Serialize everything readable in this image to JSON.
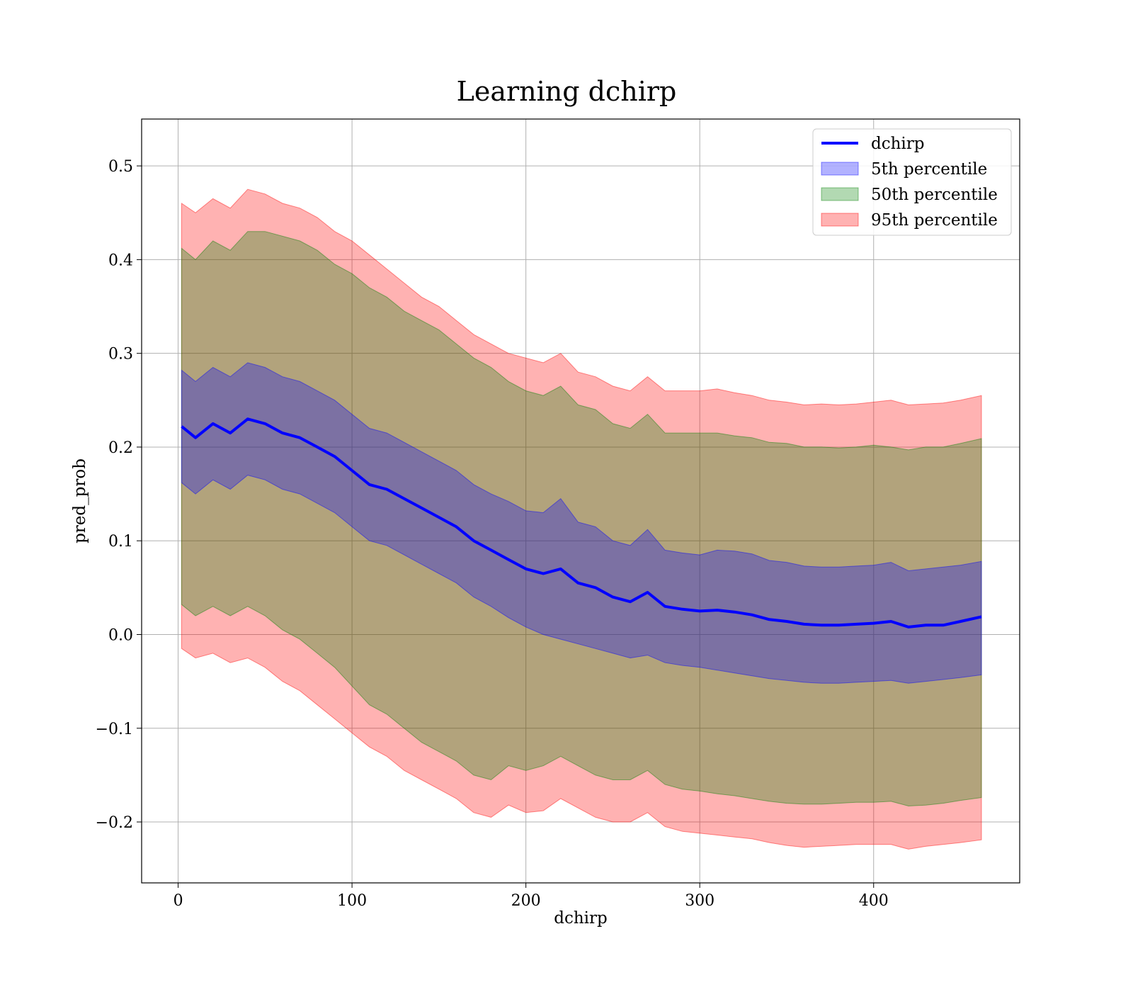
{
  "chart_data": {
    "type": "area",
    "title": "Learning dchirp",
    "xlabel": "dchirp",
    "ylabel": "pred_prob",
    "xlim": [
      -21,
      484
    ],
    "ylim": [
      -0.265,
      0.55
    ],
    "xticks": [
      0,
      100,
      200,
      300,
      400
    ],
    "yticks": [
      -0.2,
      -0.1,
      0.0,
      0.1,
      0.2,
      0.3,
      0.4,
      0.5
    ],
    "grid": true,
    "legend_position": "top-right",
    "colors": {
      "line": "#0000ff",
      "band_5th": "#0000ff",
      "band_50th": "#008000",
      "band_95th": "#ff0000"
    },
    "x": [
      2,
      10,
      20,
      30,
      40,
      50,
      60,
      70,
      80,
      90,
      100,
      110,
      120,
      130,
      140,
      150,
      160,
      170,
      180,
      190,
      200,
      210,
      220,
      230,
      240,
      250,
      260,
      270,
      280,
      290,
      300,
      310,
      320,
      330,
      340,
      350,
      360,
      370,
      380,
      390,
      400,
      410,
      420,
      430,
      440,
      450,
      462
    ],
    "series": [
      {
        "name": "dchirp",
        "kind": "line",
        "values": [
          0.222,
          0.21,
          0.225,
          0.215,
          0.23,
          0.225,
          0.215,
          0.21,
          0.2,
          0.19,
          0.175,
          0.16,
          0.155,
          0.145,
          0.135,
          0.125,
          0.115,
          0.1,
          0.09,
          0.08,
          0.07,
          0.065,
          0.07,
          0.055,
          0.05,
          0.04,
          0.035,
          0.045,
          0.03,
          0.027,
          0.025,
          0.026,
          0.024,
          0.021,
          0.016,
          0.014,
          0.011,
          0.01,
          0.01,
          0.011,
          0.012,
          0.014,
          0.008,
          0.01,
          0.01,
          0.014,
          0.019
        ]
      },
      {
        "name": "5th percentile",
        "kind": "band",
        "lower": [
          0.162,
          0.15,
          0.165,
          0.155,
          0.17,
          0.165,
          0.155,
          0.15,
          0.14,
          0.13,
          0.115,
          0.1,
          0.095,
          0.085,
          0.075,
          0.065,
          0.055,
          0.04,
          0.03,
          0.018,
          0.008,
          0.0,
          -0.005,
          -0.01,
          -0.015,
          -0.02,
          -0.025,
          -0.022,
          -0.03,
          -0.033,
          -0.035,
          -0.038,
          -0.041,
          -0.044,
          -0.047,
          -0.049,
          -0.051,
          -0.052,
          -0.052,
          -0.051,
          -0.05,
          -0.049,
          -0.052,
          -0.05,
          -0.048,
          -0.046,
          -0.043
        ],
        "upper": [
          0.282,
          0.27,
          0.285,
          0.275,
          0.29,
          0.285,
          0.275,
          0.27,
          0.26,
          0.25,
          0.235,
          0.22,
          0.215,
          0.205,
          0.195,
          0.185,
          0.175,
          0.16,
          0.15,
          0.142,
          0.132,
          0.13,
          0.145,
          0.12,
          0.115,
          0.1,
          0.095,
          0.112,
          0.09,
          0.087,
          0.085,
          0.09,
          0.089,
          0.086,
          0.079,
          0.077,
          0.073,
          0.072,
          0.072,
          0.073,
          0.074,
          0.077,
          0.068,
          0.07,
          0.072,
          0.074,
          0.078
        ]
      },
      {
        "name": "50th percentile",
        "kind": "band",
        "lower": [
          0.032,
          0.02,
          0.03,
          0.02,
          0.03,
          0.02,
          0.005,
          -0.005,
          -0.02,
          -0.035,
          -0.055,
          -0.075,
          -0.085,
          -0.1,
          -0.115,
          -0.125,
          -0.135,
          -0.15,
          -0.155,
          -0.14,
          -0.145,
          -0.14,
          -0.13,
          -0.14,
          -0.15,
          -0.155,
          -0.155,
          -0.145,
          -0.16,
          -0.165,
          -0.167,
          -0.17,
          -0.172,
          -0.175,
          -0.178,
          -0.18,
          -0.181,
          -0.181,
          -0.18,
          -0.179,
          -0.179,
          -0.178,
          -0.183,
          -0.182,
          -0.18,
          -0.177,
          -0.174
        ],
        "upper": [
          0.412,
          0.4,
          0.42,
          0.41,
          0.43,
          0.43,
          0.425,
          0.42,
          0.41,
          0.395,
          0.385,
          0.37,
          0.36,
          0.345,
          0.335,
          0.325,
          0.31,
          0.295,
          0.285,
          0.27,
          0.26,
          0.255,
          0.265,
          0.245,
          0.24,
          0.225,
          0.22,
          0.235,
          0.215,
          0.215,
          0.215,
          0.215,
          0.212,
          0.21,
          0.205,
          0.204,
          0.2,
          0.2,
          0.199,
          0.2,
          0.202,
          0.2,
          0.197,
          0.2,
          0.2,
          0.204,
          0.209
        ]
      },
      {
        "name": "95th percentile",
        "kind": "band",
        "lower": [
          -0.015,
          -0.025,
          -0.02,
          -0.03,
          -0.025,
          -0.035,
          -0.05,
          -0.06,
          -0.075,
          -0.09,
          -0.105,
          -0.12,
          -0.13,
          -0.145,
          -0.155,
          -0.165,
          -0.175,
          -0.19,
          -0.195,
          -0.182,
          -0.19,
          -0.188,
          -0.175,
          -0.185,
          -0.195,
          -0.2,
          -0.2,
          -0.19,
          -0.205,
          -0.21,
          -0.212,
          -0.214,
          -0.216,
          -0.218,
          -0.222,
          -0.225,
          -0.227,
          -0.226,
          -0.225,
          -0.224,
          -0.224,
          -0.224,
          -0.229,
          -0.226,
          -0.224,
          -0.222,
          -0.219
        ],
        "upper": [
          0.46,
          0.45,
          0.465,
          0.455,
          0.475,
          0.47,
          0.46,
          0.455,
          0.445,
          0.43,
          0.42,
          0.405,
          0.39,
          0.375,
          0.36,
          0.35,
          0.335,
          0.32,
          0.31,
          0.3,
          0.295,
          0.29,
          0.3,
          0.28,
          0.275,
          0.265,
          0.26,
          0.275,
          0.26,
          0.26,
          0.26,
          0.262,
          0.258,
          0.255,
          0.25,
          0.248,
          0.245,
          0.246,
          0.245,
          0.246,
          0.248,
          0.25,
          0.245,
          0.246,
          0.247,
          0.25,
          0.255
        ]
      }
    ]
  }
}
